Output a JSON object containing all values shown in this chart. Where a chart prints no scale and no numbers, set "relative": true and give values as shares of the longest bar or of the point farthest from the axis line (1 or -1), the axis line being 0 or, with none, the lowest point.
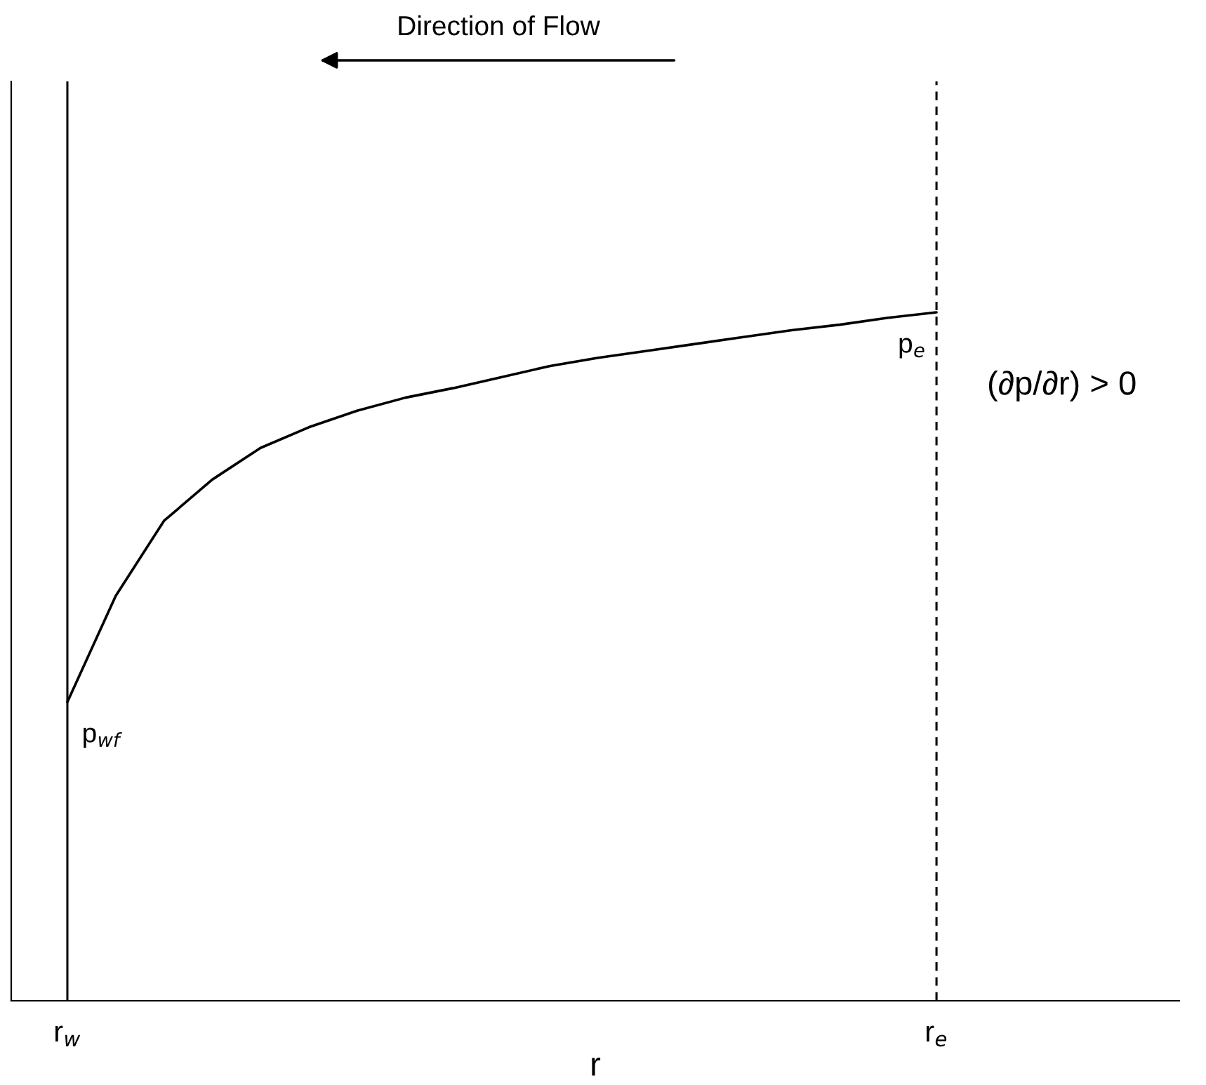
{
  "chart_data": {
    "type": "line",
    "relative": true,
    "xlabel": "r",
    "tick_labels": "x",
    "grid": false,
    "legend": false,
    "marker": "none",
    "line_style": "solid",
    "categories": [
      "r$_{w}$",
      null,
      null,
      null,
      null,
      null,
      null,
      null,
      null,
      null,
      null,
      null,
      null,
      null,
      null,
      null,
      null,
      null,
      "r$_{e}$"
    ],
    "series": [
      {
        "color": "#000000",
        "values": [
          0.434,
          0.588,
          0.697,
          0.757,
          0.803,
          0.833,
          0.857,
          0.876,
          0.89,
          0.906,
          0.922,
          0.934,
          0.944,
          0.954,
          0.964,
          0.974,
          0.982,
          0.992,
          1
        ]
      }
    ],
    "ref_lines": [
      {
        "axis": "x",
        "value": "r$_{w}$",
        "color": "#000000",
        "line_style": "solid"
      },
      {
        "axis": "x",
        "value": "r$_{e}$",
        "color": "#000000",
        "line_style": "dashed"
      }
    ],
    "annotations": [
      {
        "text": "p$_{wf}$",
        "x": "r$_{w}$",
        "y": 0.434
      },
      {
        "text": "p$_{e}$",
        "x": "r$_{e}$",
        "y": 1
      },
      "Direction of Flow",
      "(∂p/∂r) > 0"
    ]
  }
}
